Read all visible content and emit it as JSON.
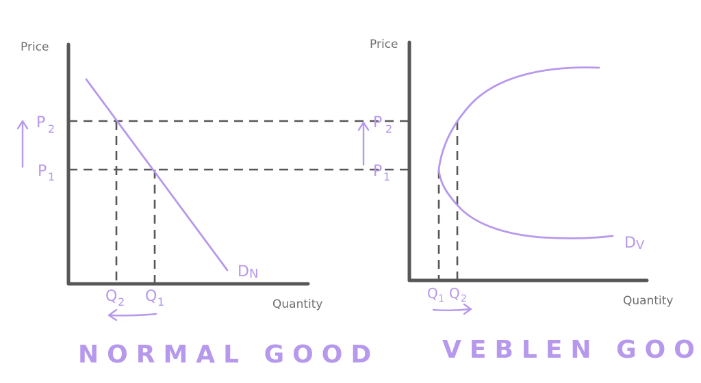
{
  "normal": {
    "price_label": "Price",
    "quantity_label": "Quantity",
    "p2_letter": "P",
    "p2_sub": "2",
    "p1_letter": "P",
    "p1_sub": "1",
    "q2_letter": "Q",
    "q2_sub": "2",
    "q1_letter": "Q",
    "q1_sub": "1",
    "curve_letter": "D",
    "curve_sub": "N",
    "title": "NORMAL GOOD"
  },
  "veblen": {
    "price_label": "Price",
    "quantity_label": "Quantity",
    "p2_letter": "P",
    "p2_sub": "2",
    "p1_letter": "P",
    "p1_sub": "1",
    "q1_letter": "Q",
    "q1_sub": "1",
    "q2_letter": "Q",
    "q2_sub": "2",
    "curve_letter": "D",
    "curve_sub": "V",
    "title": "VEBLEN GOOD"
  },
  "colors": {
    "curve": "#b698ec",
    "axis": "#575757",
    "text": "#6e6e6e"
  }
}
